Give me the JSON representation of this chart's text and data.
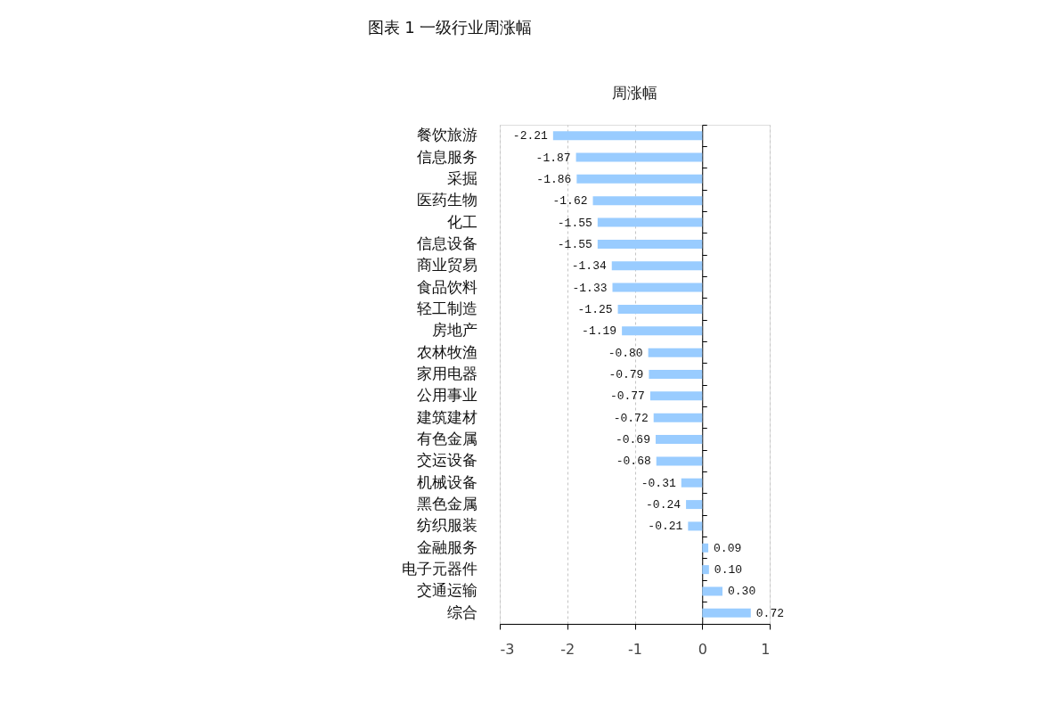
{
  "chart_data": {
    "type": "bar",
    "orientation": "horizontal",
    "title": "图表 1 一级行业周涨幅",
    "subtitle": "周涨幅",
    "categories": [
      "餐饮旅游",
      "信息服务",
      "采掘",
      "医药生物",
      "化工",
      "信息设备",
      "商业贸易",
      "食品饮料",
      "轻工制造",
      "房地产",
      "农林牧渔",
      "家用电器",
      "公用事业",
      "建筑建材",
      "有色金属",
      "交运设备",
      "机械设备",
      "黑色金属",
      "纺织服装",
      "金融服务",
      "电子元器件",
      "交通运输",
      "综合"
    ],
    "values": [
      -2.21,
      -1.87,
      -1.86,
      -1.62,
      -1.55,
      -1.55,
      -1.34,
      -1.33,
      -1.25,
      -1.19,
      -0.8,
      -0.79,
      -0.77,
      -0.72,
      -0.69,
      -0.68,
      -0.31,
      -0.24,
      -0.21,
      0.09,
      0.1,
      0.3,
      0.72
    ],
    "value_labels": [
      "-2.21",
      "-1.87",
      "-1.86",
      "-1.62",
      "-1.55",
      "-1.55",
      "-1.34",
      "-1.33",
      "-1.25",
      "-1.19",
      "-0.80",
      "-0.79",
      "-0.77",
      "-0.72",
      "-0.69",
      "-0.68",
      "-0.31",
      "-0.24",
      "-0.21",
      "0.09",
      "0.10",
      "0.30",
      "0.72"
    ],
    "color": "#99ccff",
    "xlim": [
      -3,
      1
    ],
    "xticks": [
      -3,
      -2,
      -1,
      0,
      1
    ],
    "grid": "x"
  }
}
